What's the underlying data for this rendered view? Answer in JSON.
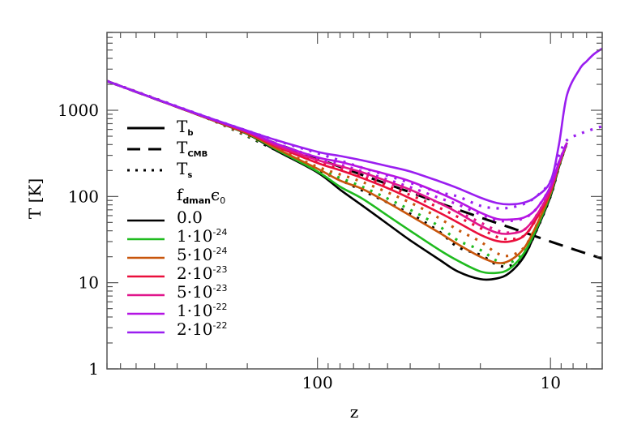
{
  "chart_data": {
    "type": "line",
    "xlabel": "z",
    "ylabel": "T [K]",
    "xscale": "log",
    "yscale": "log",
    "x_reversed": true,
    "xlim": [
      800,
      6
    ],
    "ylim": [
      1,
      8000
    ],
    "x_tick_labels": [
      {
        "value": 100,
        "label": "100"
      },
      {
        "value": 10,
        "label": "10"
      }
    ],
    "y_tick_labels": [
      {
        "value": 1,
        "label": "1"
      },
      {
        "value": 10,
        "label": "10"
      },
      {
        "value": 100,
        "label": "100"
      },
      {
        "value": 1000,
        "label": "1000"
      }
    ],
    "grid": false,
    "legend_placement": "left",
    "style_legend": [
      {
        "base": "T",
        "sub": "b",
        "style": "solid"
      },
      {
        "base": "T",
        "sub": "CMB",
        "style": "dashed"
      },
      {
        "base": "T",
        "sub": "s",
        "style": "dotted"
      }
    ],
    "param_legend_title": {
      "f": "f",
      "f_sub": "dman",
      "eps": "ϵ",
      "eps_sub": "0"
    },
    "cmb": {
      "z": [
        800,
        500,
        300,
        200,
        150,
        100,
        64,
        40,
        30,
        20,
        15,
        10,
        8,
        6
      ],
      "T": [
        2183,
        1365,
        820,
        548,
        411,
        275,
        177,
        112,
        84,
        57,
        44,
        30,
        24.5,
        19
      ]
    },
    "series": [
      {
        "label": "0.0",
        "mant": "0.0",
        "exp": "",
        "color": "#000000",
        "z": [
          800,
          500,
          300,
          200,
          150,
          100,
          80,
          64,
          50,
          40,
          30,
          25,
          20,
          17,
          15,
          13,
          11.5,
          10,
          9.2,
          8.5
        ],
        "Tb": [
          2183,
          1365,
          815,
          530,
          340,
          190,
          120,
          78,
          48,
          31,
          18.5,
          13.5,
          11,
          11.2,
          13,
          20,
          40,
          100,
          220,
          420
        ],
        "zs": [
          800,
          300,
          150,
          100,
          64,
          40,
          30,
          25,
          20,
          17,
          15,
          13,
          11.5,
          10,
          9.2,
          8.5
        ],
        "Ts": [
          2183,
          817,
          343,
          205,
          117,
          63,
          39,
          26,
          21,
          16.2,
          15.6,
          20.6,
          40,
          100,
          220,
          420
        ]
      },
      {
        "label": "1·10-24",
        "mant": "1·10",
        "exp": "−24",
        "color": "#1fbb1f",
        "z": [
          800,
          500,
          300,
          200,
          150,
          100,
          80,
          64,
          50,
          40,
          30,
          25,
          20,
          17,
          15,
          13,
          11.5,
          10,
          9.2,
          8.5
        ],
        "Tb": [
          2183,
          1365,
          817,
          535,
          350,
          195,
          130,
          94,
          60,
          40,
          24,
          18,
          13.5,
          13,
          14.5,
          22,
          42,
          105,
          225,
          420
        ],
        "zs": [
          800,
          300,
          150,
          100,
          64,
          40,
          30,
          25,
          20,
          17,
          15,
          13,
          11.5,
          10,
          9.2,
          8.5
        ],
        "Ts": [
          2183,
          818,
          353,
          209,
          129,
          70,
          45,
          31,
          24,
          18,
          17,
          22.6,
          42,
          105,
          225,
          420
        ]
      },
      {
        "label": "5·10-24",
        "mant": "5·10",
        "exp": "−24",
        "color": "#c8560c",
        "z": [
          800,
          500,
          300,
          200,
          150,
          100,
          80,
          64,
          50,
          40,
          30,
          25,
          20,
          17,
          15,
          13,
          11.5,
          10,
          9.2,
          8.5
        ],
        "Tb": [
          2183,
          1365,
          818,
          540,
          360,
          210,
          153,
          122,
          85,
          60,
          38,
          28,
          20,
          17,
          18,
          25,
          46,
          110,
          230,
          420
        ],
        "zs": [
          800,
          300,
          150,
          100,
          64,
          40,
          30,
          25,
          20,
          17,
          15,
          13,
          11.5,
          10,
          9.2,
          8.5
        ],
        "Ts": [
          2183,
          819,
          363,
          221,
          147,
          85,
          56,
          41,
          30,
          22,
          20.6,
          25.5,
          46,
          110,
          230,
          420
        ]
      },
      {
        "label": "2·10-23",
        "mant": "2·10",
        "exp": "−23",
        "color": "#ea0f3c",
        "z": [
          800,
          500,
          300,
          200,
          150,
          100,
          80,
          64,
          50,
          40,
          30,
          25,
          20,
          17,
          15,
          13,
          11.5,
          10,
          9.2,
          8.5
        ],
        "Tb": [
          2183,
          1365,
          820,
          550,
          380,
          245,
          202,
          163,
          125,
          95,
          65,
          50,
          36,
          30.5,
          30,
          35,
          55,
          115,
          235,
          420
        ],
        "zs": [
          800,
          300,
          150,
          100,
          64,
          40,
          30,
          25,
          20,
          17,
          15,
          13,
          11.5,
          10,
          9.2,
          8.5
        ],
        "Ts": [
          2183,
          820,
          381,
          251,
          170,
          104,
          74,
          58,
          43,
          34,
          32,
          35,
          55,
          115,
          235,
          420
        ]
      },
      {
        "label": "5·10-23",
        "mant": "5·10",
        "exp": "−23",
        "color": "#e0168c",
        "z": [
          800,
          500,
          300,
          200,
          150,
          100,
          80,
          64,
          50,
          40,
          30,
          25,
          20,
          17,
          15,
          13,
          11.5,
          10,
          9.2,
          8.5
        ],
        "Tb": [
          2183,
          1366,
          824,
          560,
          390,
          265,
          225,
          190,
          150,
          120,
          84,
          65,
          46,
          38,
          37,
          41,
          60,
          120,
          240,
          420
        ],
        "zs": [
          800,
          300,
          150,
          100,
          64,
          40,
          30,
          25,
          20,
          17,
          15,
          13,
          11.5,
          10,
          9.2,
          8.5
        ],
        "Ts": [
          2183,
          824,
          392,
          267,
          183,
          115,
          84,
          67,
          50,
          40.5,
          38,
          41,
          60,
          120,
          240,
          420
        ]
      },
      {
        "label": "1·10-22",
        "mant": "1·10",
        "exp": "−22",
        "color": "#b414e4",
        "z": [
          800,
          500,
          300,
          200,
          150,
          100,
          80,
          64,
          50,
          40,
          30,
          25,
          20,
          17,
          15,
          13,
          11.5,
          10,
          9.2,
          8.5
        ],
        "Tb": [
          2183,
          1367,
          830,
          570,
          410,
          285,
          252,
          215,
          180,
          150,
          110,
          88,
          65,
          55,
          54,
          57,
          72,
          130,
          250,
          420
        ],
        "zs": [
          800,
          300,
          150,
          100,
          64,
          40,
          30,
          25,
          20,
          17,
          15,
          13,
          11.5,
          10,
          9.2,
          8.5
        ],
        "Ts": [
          2183,
          830,
          410,
          283,
          195,
          128,
          96,
          81,
          62,
          53,
          52,
          56,
          72,
          130,
          250,
          420
        ]
      },
      {
        "label": "2·10-22",
        "mant": "2·10",
        "exp": "−22",
        "color": "#9a1ef0",
        "z": [
          800,
          500,
          300,
          200,
          150,
          100,
          80,
          64,
          50,
          40,
          30,
          25,
          20,
          17,
          15,
          13,
          11.5,
          10,
          9.2,
          8.5,
          7.5,
          7,
          6.5,
          6
        ],
        "Tb": [
          2183,
          1370,
          840,
          580,
          450,
          330,
          295,
          262,
          225,
          195,
          150,
          125,
          97,
          84,
          81,
          85,
          100,
          150,
          400,
          1500,
          3000,
          3700,
          4500,
          5200
        ],
        "zs": [
          800,
          300,
          150,
          100,
          64,
          40,
          30,
          25,
          20,
          17,
          15,
          13,
          11.5,
          10,
          9.2,
          8.5,
          7.5,
          7,
          6.5,
          6
        ],
        "Ts": [
          2183,
          840,
          448,
          318,
          215,
          144,
          112,
          100,
          78,
          73,
          74,
          82,
          100,
          150,
          300,
          450,
          530,
          570,
          610,
          650
        ]
      }
    ]
  }
}
